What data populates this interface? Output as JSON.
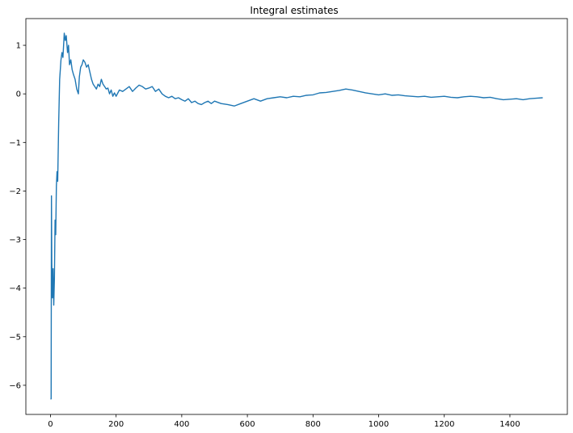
{
  "chart_data": {
    "type": "line",
    "title": "Integral estimates",
    "xlabel": "",
    "ylabel": "",
    "xlim": [
      -75,
      1575
    ],
    "ylim": [
      -6.6,
      1.55
    ],
    "x_ticks": [
      0,
      200,
      400,
      600,
      800,
      1000,
      1200,
      1400
    ],
    "x_tick_labels": [
      "0",
      "200",
      "400",
      "600",
      "800",
      "1000",
      "1200",
      "1400"
    ],
    "y_ticks": [
      1,
      0,
      -1,
      -2,
      -3,
      -4,
      -5,
      -6
    ],
    "y_tick_labels": [
      "1",
      "0",
      "−1",
      "−2",
      "−3",
      "−4",
      "−5",
      "−6"
    ],
    "grid": false,
    "line_color": "#1f77b4",
    "series": [
      {
        "x": [
          0,
          2,
          3,
          4,
          6,
          8,
          10,
          12,
          14,
          16,
          18,
          20,
          22,
          25,
          28,
          32,
          35,
          38,
          42,
          45,
          48,
          52,
          55,
          58,
          62,
          66,
          70,
          75,
          80,
          85,
          88,
          92,
          96,
          100,
          105,
          110,
          115,
          120,
          125,
          130,
          135,
          140,
          145,
          150,
          155,
          160,
          165,
          170,
          175,
          180,
          185,
          190,
          195,
          200,
          210,
          220,
          230,
          240,
          250,
          260,
          270,
          280,
          290,
          300,
          310,
          320,
          330,
          340,
          350,
          360,
          370,
          380,
          390,
          400,
          410,
          420,
          430,
          440,
          450,
          460,
          470,
          480,
          490,
          500,
          520,
          540,
          560,
          580,
          600,
          620,
          640,
          660,
          680,
          700,
          720,
          740,
          760,
          780,
          800,
          820,
          840,
          860,
          880,
          900,
          920,
          940,
          960,
          980,
          1000,
          1020,
          1040,
          1060,
          1080,
          1100,
          1120,
          1140,
          1160,
          1180,
          1200,
          1220,
          1240,
          1260,
          1280,
          1300,
          1320,
          1340,
          1360,
          1380,
          1400,
          1420,
          1440,
          1460,
          1480,
          1500
        ],
        "y": [
          -6.28,
          -6.28,
          -2.1,
          -3.5,
          -4.2,
          -3.6,
          -4.35,
          -3.8,
          -2.6,
          -2.9,
          -1.9,
          -1.6,
          -1.8,
          -0.6,
          0.3,
          0.7,
          0.85,
          0.75,
          1.25,
          1.1,
          1.2,
          0.85,
          1.0,
          0.6,
          0.7,
          0.5,
          0.4,
          0.3,
          0.1,
          0.0,
          0.35,
          0.55,
          0.6,
          0.7,
          0.65,
          0.55,
          0.6,
          0.45,
          0.3,
          0.2,
          0.15,
          0.1,
          0.2,
          0.15,
          0.3,
          0.2,
          0.15,
          0.1,
          0.12,
          0.0,
          0.08,
          -0.05,
          0.02,
          -0.05,
          0.08,
          0.05,
          0.1,
          0.15,
          0.05,
          0.12,
          0.18,
          0.15,
          0.1,
          0.12,
          0.15,
          0.05,
          0.1,
          0.0,
          -0.05,
          -0.08,
          -0.05,
          -0.1,
          -0.08,
          -0.12,
          -0.15,
          -0.1,
          -0.18,
          -0.15,
          -0.2,
          -0.22,
          -0.18,
          -0.15,
          -0.2,
          -0.15,
          -0.2,
          -0.22,
          -0.25,
          -0.2,
          -0.15,
          -0.1,
          -0.15,
          -0.1,
          -0.08,
          -0.06,
          -0.08,
          -0.05,
          -0.06,
          -0.03,
          -0.02,
          0.02,
          0.03,
          0.05,
          0.07,
          0.1,
          0.08,
          0.05,
          0.02,
          0.0,
          -0.02,
          0.0,
          -0.03,
          -0.02,
          -0.04,
          -0.05,
          -0.06,
          -0.05,
          -0.07,
          -0.06,
          -0.05,
          -0.07,
          -0.08,
          -0.06,
          -0.05,
          -0.06,
          -0.08,
          -0.07,
          -0.1,
          -0.12,
          -0.11,
          -0.1,
          -0.12,
          -0.1,
          -0.09,
          -0.08
        ]
      }
    ]
  }
}
